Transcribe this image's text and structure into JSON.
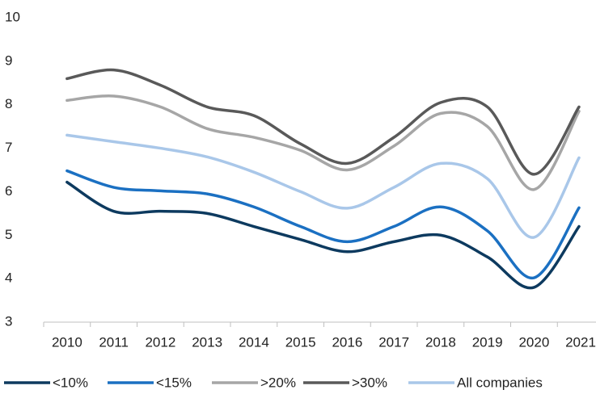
{
  "chart_data": {
    "type": "line",
    "categories": [
      "2010",
      "2011",
      "2012",
      "2013",
      "2014",
      "2015",
      "2016",
      "2017",
      "2018",
      "2019",
      "2020",
      "2021"
    ],
    "series": [
      {
        "name": "<10%",
        "color": "#0d3a5f",
        "values": [
          6.22,
          5.55,
          5.55,
          5.5,
          5.2,
          4.9,
          4.62,
          4.85,
          5.0,
          4.5,
          3.8,
          5.2
        ]
      },
      {
        "name": "<15%",
        "color": "#1b70c2",
        "values": [
          6.48,
          6.1,
          6.02,
          5.95,
          5.65,
          5.2,
          4.85,
          5.2,
          5.65,
          5.1,
          4.02,
          5.63
        ]
      },
      {
        "name": ">20%",
        "color": "#a6a6a6",
        "values": [
          8.1,
          8.2,
          7.95,
          7.45,
          7.25,
          6.95,
          6.5,
          7.05,
          7.8,
          7.5,
          6.05,
          7.85
        ]
      },
      {
        "name": ">30%",
        "color": "#595959",
        "values": [
          8.6,
          8.8,
          8.45,
          7.95,
          7.75,
          7.1,
          6.65,
          7.25,
          8.05,
          7.95,
          6.4,
          7.95
        ]
      },
      {
        "name": "All companies",
        "color": "#a9c7e9",
        "values": [
          7.3,
          7.15,
          7.0,
          6.8,
          6.45,
          6.0,
          5.62,
          6.1,
          6.65,
          6.3,
          4.95,
          6.78
        ]
      }
    ],
    "ylim": [
      3,
      10
    ],
    "yticks": [
      3,
      4,
      5,
      6,
      7,
      8,
      9,
      10
    ],
    "grid": false,
    "legend": "bottom"
  }
}
